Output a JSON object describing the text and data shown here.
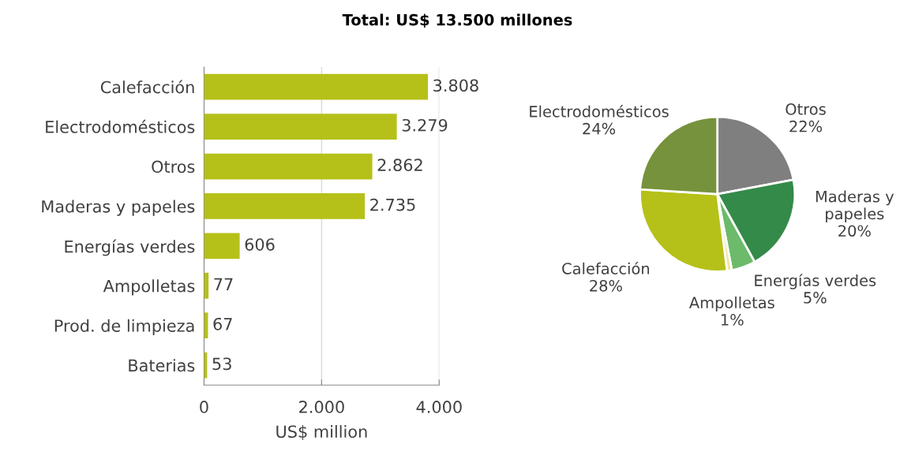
{
  "chart_data": [
    {
      "type": "bar",
      "orientation": "horizontal",
      "xlabel": "US$ million",
      "categories": [
        "Calefacción",
        "Electrodomésticos",
        "Otros",
        "Maderas y papeles",
        "Energías verdes",
        "Ampolletas",
        "Prod. de limpieza",
        "Baterias"
      ],
      "values": [
        3808,
        3279,
        2862,
        2735,
        606,
        77,
        67,
        53
      ],
      "value_labels": [
        "3.808",
        "3.279",
        "2.862",
        "2.735",
        "606",
        "77",
        "67",
        "53"
      ],
      "color": "#b5c118",
      "xlim": [
        0,
        4000
      ],
      "xticks": [
        0,
        {
          "value": 2000,
          "label": "2.000"
        },
        {
          "value": 4000,
          "label": "4.000"
        }
      ],
      "grid": "x"
    },
    {
      "type": "pie",
      "title": "Total: US$ 13.500 millones",
      "categories": [
        "Otros",
        "Maderas y\npapeles",
        "Energías verdes",
        "Ampolletas",
        "Calefacción",
        "Electrodomésticos"
      ],
      "values": [
        22,
        20,
        5,
        1,
        28,
        24
      ],
      "value_labels": [
        "22%",
        "20%",
        "5%",
        "1%",
        "28%",
        "24%"
      ],
      "colors": [
        "#7f7f7f",
        "#348a48",
        "#6cba6a",
        "#f3e3a0",
        "#b5c118",
        "#76923c"
      ]
    }
  ]
}
